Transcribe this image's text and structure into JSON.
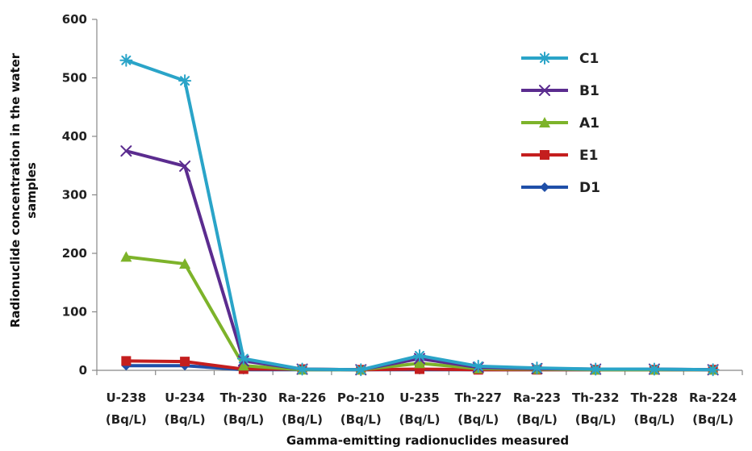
{
  "chart_data": {
    "type": "line",
    "title": "",
    "xlabel": "Gamma-emitting radionuclides measured",
    "ylabel": [
      "Radionuclide concentration in the water",
      "samples"
    ],
    "categories": [
      [
        "U-238",
        "(Bq/L)"
      ],
      [
        "U-234",
        "(Bq/L)"
      ],
      [
        "Th-230",
        "(Bq/L)"
      ],
      [
        "Ra-226",
        "(Bq/L)"
      ],
      [
        "Po-210",
        "(Bq/L)"
      ],
      [
        "U-235",
        "(Bq/L)"
      ],
      [
        "Th-227",
        "(Bq/L)"
      ],
      [
        "Ra-223",
        "(Bq/L)"
      ],
      [
        "Th-232",
        "(Bq/L)"
      ],
      [
        "Th-228",
        "(Bq/L)"
      ],
      [
        "Ra-224",
        "(Bq/L)"
      ]
    ],
    "ylim": [
      0,
      600
    ],
    "yticks": [
      0,
      100,
      200,
      300,
      400,
      500,
      600
    ],
    "ytick_labels": [
      "0",
      "100",
      "200",
      "300",
      "400",
      "500",
      "600"
    ],
    "grid": false,
    "legend_position": "right",
    "series": [
      {
        "name": "C1",
        "color": "#2AA4C8",
        "marker": "asterisk",
        "values": [
          530,
          495,
          20,
          2,
          1,
          25,
          7,
          4,
          2,
          2,
          1
        ]
      },
      {
        "name": "B1",
        "color": "#5B2C8F",
        "marker": "x",
        "values": [
          375,
          349,
          16,
          2,
          1,
          20,
          5,
          3,
          2,
          2,
          1
        ]
      },
      {
        "name": "A1",
        "color": "#7DB32A",
        "marker": "triangle",
        "values": [
          194,
          182,
          8,
          1,
          1,
          12,
          3,
          2,
          1,
          1,
          1
        ]
      },
      {
        "name": "E1",
        "color": "#C41E1E",
        "marker": "square",
        "values": [
          16,
          15,
          2,
          2,
          1,
          2,
          1,
          1,
          1,
          1,
          1
        ]
      },
      {
        "name": "D1",
        "color": "#1F4FA8",
        "marker": "diamond",
        "values": [
          8,
          8,
          1,
          1,
          1,
          1,
          1,
          1,
          1,
          1,
          1
        ]
      }
    ],
    "legend_order": [
      "C1",
      "B1",
      "A1",
      "E1",
      "D1"
    ],
    "axis_color": "#888888"
  }
}
